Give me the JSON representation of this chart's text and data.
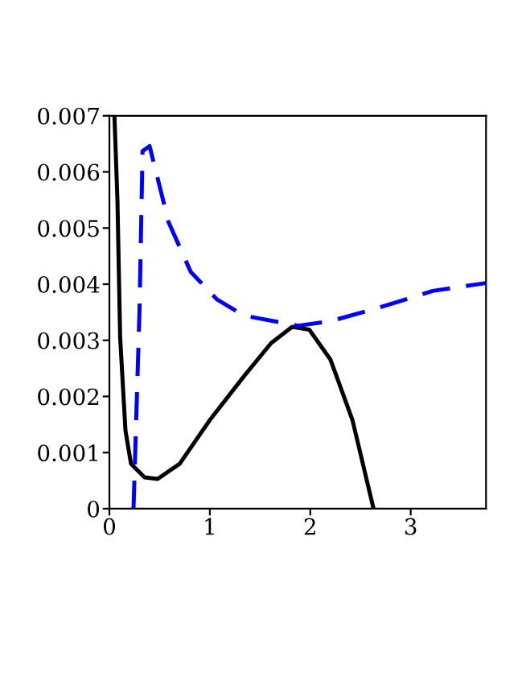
{
  "chart_data": {
    "type": "line",
    "xlim": [
      0,
      3.75
    ],
    "ylim": [
      0,
      0.007
    ],
    "xticks": [
      0,
      1,
      2,
      3
    ],
    "yticks": [
      0,
      0.001,
      0.002,
      0.003,
      0.004,
      0.005,
      0.006,
      0.007
    ],
    "grid": false,
    "legend": false,
    "series": [
      {
        "color": "#000000",
        "line_style": "solid",
        "x": [
          0.05,
          0.08,
          0.107,
          0.16,
          0.215,
          0.35,
          0.48,
          0.7,
          1.0,
          1.34,
          1.61,
          1.82,
          1.99,
          2.2,
          2.42,
          2.63
        ],
        "values": [
          0.007,
          0.0055,
          0.00305,
          0.00139,
          0.0008,
          0.00056,
          0.00053,
          0.0008,
          0.00158,
          0.00236,
          0.00295,
          0.00324,
          0.00319,
          0.00266,
          0.00158,
          0
        ]
      },
      {
        "color": "#0000ff",
        "line_style": "dashed",
        "x": [
          0.24,
          0.3,
          0.33,
          0.4,
          0.59,
          0.81,
          1.07,
          1.34,
          1.88,
          2.2,
          2.68,
          3.22,
          3.75
        ],
        "values": [
          0,
          0.00354,
          0.00637,
          0.00646,
          0.0051,
          0.00422,
          0.00373,
          0.00344,
          0.00326,
          0.00334,
          0.00358,
          0.00388,
          0.00402
        ]
      }
    ]
  }
}
